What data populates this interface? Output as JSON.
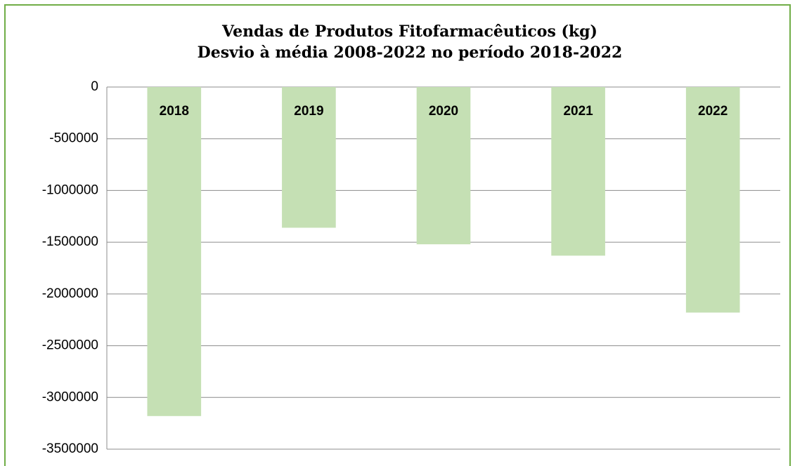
{
  "chart_data": {
    "type": "bar",
    "title": "Vendas de Produtos Fitofarmacêuticos (kg)",
    "subtitle": "Desvio à média 2008-2022 no período 2018-2022",
    "categories": [
      "2018",
      "2019",
      "2020",
      "2021",
      "2022"
    ],
    "values": [
      -3180000,
      -1360000,
      -1520000,
      -1630000,
      -2180000
    ],
    "color": "#c5e0b4",
    "ylim": [
      -3500000,
      0
    ],
    "yticks": [
      0,
      -500000,
      -1000000,
      -1500000,
      -2000000,
      -2500000,
      -3000000,
      -3500000
    ],
    "grid": true
  }
}
